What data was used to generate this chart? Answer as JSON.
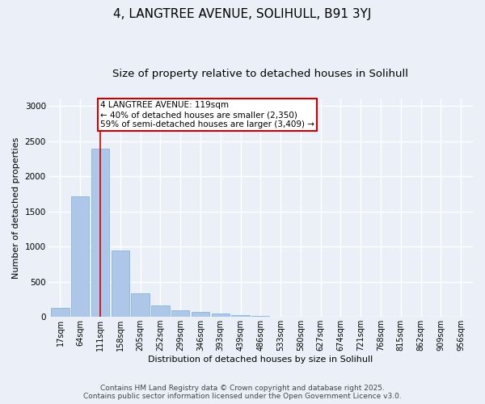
{
  "title1": "4, LANGTREE AVENUE, SOLIHULL, B91 3YJ",
  "title2": "Size of property relative to detached houses in Solihull",
  "xlabel": "Distribution of detached houses by size in Solihull",
  "ylabel": "Number of detached properties",
  "categories": [
    "17sqm",
    "64sqm",
    "111sqm",
    "158sqm",
    "205sqm",
    "252sqm",
    "299sqm",
    "346sqm",
    "393sqm",
    "439sqm",
    "486sqm",
    "533sqm",
    "580sqm",
    "627sqm",
    "674sqm",
    "721sqm",
    "768sqm",
    "815sqm",
    "862sqm",
    "909sqm",
    "956sqm"
  ],
  "values": [
    130,
    1720,
    2395,
    940,
    330,
    160,
    90,
    70,
    50,
    30,
    10,
    0,
    0,
    0,
    0,
    0,
    0,
    0,
    0,
    0,
    0
  ],
  "bar_color": "#aec6e8",
  "bar_edge_color": "#7bafd4",
  "highlight_line_color": "#cc0000",
  "annotation_box_text": "4 LANGTREE AVENUE: 119sqm\n← 40% of detached houses are smaller (2,350)\n59% of semi-detached houses are larger (3,409) →",
  "annotation_box_color": "#cc0000",
  "annotation_box_bg": "#ffffff",
  "vline_x": 2,
  "ylim": [
    0,
    3100
  ],
  "yticks": [
    0,
    500,
    1000,
    1500,
    2000,
    2500,
    3000
  ],
  "background_color": "#eaeff8",
  "grid_color": "#ffffff",
  "footer_text": "Contains HM Land Registry data © Crown copyright and database right 2025.\nContains public sector information licensed under the Open Government Licence v3.0.",
  "title_fontsize": 11,
  "subtitle_fontsize": 9.5,
  "axis_label_fontsize": 8,
  "tick_fontsize": 7,
  "annotation_fontsize": 7.5,
  "footer_fontsize": 6.5
}
